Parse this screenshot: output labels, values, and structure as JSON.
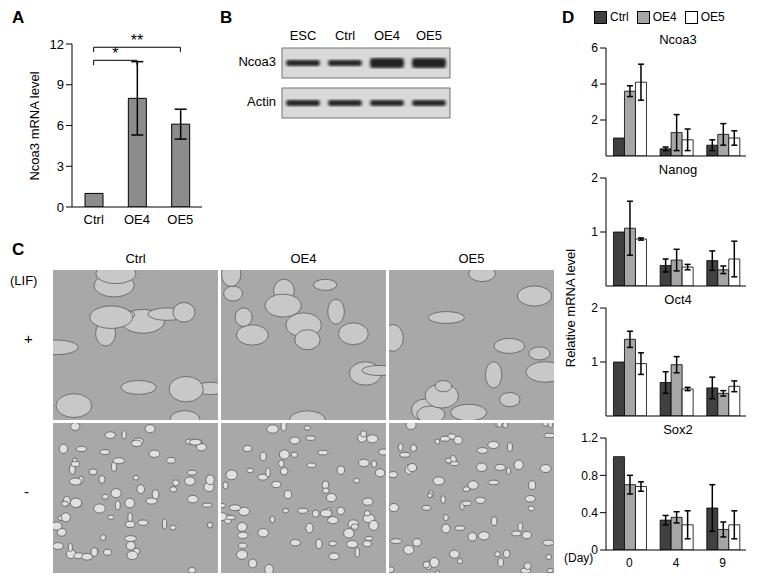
{
  "chart_data": [
    {
      "panel": "A",
      "type": "bar",
      "y_label": "Ncoa3 mRNA level",
      "categories": [
        "Ctrl",
        "OE4",
        "OE5"
      ],
      "values": [
        1,
        8,
        6.1
      ],
      "errors": [
        0,
        2.7,
        1.1
      ],
      "color": "#8c8c8c",
      "ylim": [
        0,
        12
      ],
      "yticks": [
        0,
        3,
        6,
        9,
        12
      ],
      "significance": [
        {
          "from": "Ctrl",
          "to": "OE4",
          "label": "*"
        },
        {
          "from": "Ctrl",
          "to": "OE5",
          "label": "**"
        }
      ]
    },
    {
      "panel": "D",
      "type": "bar",
      "y_label": "Relative mRNA level",
      "x_label": "(Day)",
      "categories": [
        "0",
        "4",
        "9"
      ],
      "legend": "top",
      "series": [
        {
          "name": "Ctrl",
          "color": "#404040"
        },
        {
          "name": "OE4",
          "color": "#a6a6a6"
        },
        {
          "name": "OE5",
          "color": "#ffffff"
        }
      ],
      "subplots": [
        {
          "title": "Ncoa3",
          "ylim": [
            0,
            6
          ],
          "yticks": [
            0,
            2,
            4,
            6
          ],
          "tick_labels": "y",
          "values": [
            [
              1,
              0.4,
              0.6
            ],
            [
              3.6,
              1.3,
              1.2
            ],
            [
              4.1,
              0.9,
              1.0
            ]
          ],
          "errors": [
            [
              0,
              0.1,
              0.3
            ],
            [
              0.3,
              1.0,
              0.6
            ],
            [
              1.0,
              0.6,
              0.4
            ]
          ]
        },
        {
          "title": "Nanog",
          "ylim": [
            0,
            2
          ],
          "yticks": [
            0,
            1,
            2
          ],
          "tick_labels": "y",
          "values": [
            [
              1,
              0.38,
              0.47
            ],
            [
              1.07,
              0.48,
              0.3
            ],
            [
              0.87,
              0.35,
              0.5
            ]
          ],
          "errors": [
            [
              0,
              0.12,
              0.18
            ],
            [
              0.5,
              0.2,
              0.07
            ],
            [
              0.02,
              0.05,
              0.33
            ]
          ]
        },
        {
          "title": "Oct4",
          "ylim": [
            0,
            2
          ],
          "yticks": [
            0,
            1,
            2
          ],
          "tick_labels": "y",
          "values": [
            [
              1,
              0.62,
              0.52
            ],
            [
              1.42,
              0.95,
              0.42
            ],
            [
              0.97,
              0.5,
              0.55
            ]
          ],
          "errors": [
            [
              0,
              0.2,
              0.2
            ],
            [
              0.15,
              0.15,
              0.05
            ],
            [
              0.2,
              0.03,
              0.1
            ]
          ]
        },
        {
          "title": "Sox2",
          "ylim": [
            0,
            1.2
          ],
          "yticks": [
            0,
            0.4,
            0.8,
            1.2
          ],
          "values": [
            [
              1,
              0.32,
              0.45
            ],
            [
              0.7,
              0.35,
              0.22
            ],
            [
              0.68,
              0.27,
              0.27
            ]
          ],
          "errors": [
            [
              0,
              0.05,
              0.25
            ],
            [
              0.1,
              0.06,
              0.08
            ],
            [
              0.05,
              0.15,
              0.15
            ]
          ]
        }
      ]
    }
  ],
  "blot": {
    "panel": "B",
    "columns": [
      "ESC",
      "Ctrl",
      "OE4",
      "OE5"
    ],
    "rows": [
      "Ncoa3",
      "Actin"
    ]
  },
  "micrographs": {
    "panel": "C",
    "row_header": "(LIF)",
    "columns": [
      "Ctrl",
      "OE4",
      "OE5"
    ],
    "rows": [
      "+",
      "-"
    ]
  }
}
